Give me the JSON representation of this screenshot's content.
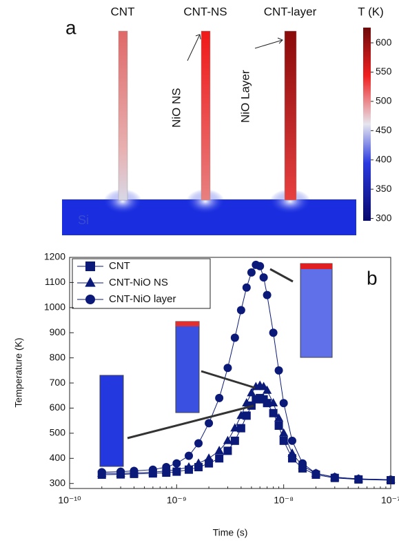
{
  "chart_data": [
    {
      "type": "colormap",
      "panel": "a",
      "labels": [
        "CNT",
        "CNT-NS",
        "CNT-layer"
      ],
      "annotations": [
        "NiO NS",
        "NiO Layer"
      ],
      "substrate": "Si",
      "colorbar_title": "T (K)",
      "colorbar_lim": [
        296,
        626
      ],
      "colorbar_ticks": [
        300,
        350,
        400,
        450,
        500,
        550,
        600
      ]
    },
    {
      "type": "line",
      "panel": "b",
      "xscale": "log",
      "xlabel": "Time (s)",
      "ylabel": "Temperature (K)",
      "xlim": [
        1e-10,
        1e-07
      ],
      "xticks": [
        {
          "value": 1e-10,
          "label": "10⁻¹⁰"
        },
        {
          "value": 1e-09,
          "label": "10⁻⁹"
        },
        {
          "value": 1e-08,
          "label": "10⁻⁸"
        },
        {
          "value": 1e-07,
          "label": "10⁻⁷"
        }
      ],
      "ylim": [
        280,
        1200
      ],
      "yticks": [
        300,
        400,
        500,
        600,
        700,
        800,
        900,
        1000,
        1100,
        1200
      ],
      "legend": "upper left",
      "x": [
        2e-10,
        3e-10,
        4e-10,
        6e-10,
        8e-10,
        1e-09,
        1.3e-09,
        1.6e-09,
        2e-09,
        2.5e-09,
        3e-09,
        3.5e-09,
        4e-09,
        4.5e-09,
        5e-09,
        5.5e-09,
        6e-09,
        6.5e-09,
        7e-09,
        8e-09,
        9e-09,
        1e-08,
        1.2e-08,
        1.5e-08,
        2e-08,
        3e-08,
        5e-08,
        1e-07
      ],
      "series": [
        {
          "name": "CNT",
          "marker": "square",
          "color": "#0b1a78",
          "values": [
            335,
            336,
            338,
            340,
            343,
            347,
            355,
            365,
            380,
            400,
            430,
            470,
            520,
            570,
            610,
            635,
            640,
            635,
            620,
            580,
            530,
            470,
            400,
            360,
            335,
            322,
            316,
            313
          ]
        },
        {
          "name": "CNT-NiO NS",
          "marker": "triangle",
          "color": "#0b1a78",
          "values": [
            340,
            340,
            342,
            345,
            350,
            355,
            365,
            380,
            400,
            430,
            470,
            520,
            570,
            620,
            660,
            685,
            690,
            685,
            670,
            620,
            560,
            500,
            420,
            370,
            340,
            325,
            318,
            315
          ]
        },
        {
          "name": "CNT-NiO layer",
          "marker": "circle",
          "color": "#0b1a78",
          "values": [
            345,
            347,
            350,
            355,
            365,
            380,
            410,
            460,
            540,
            640,
            760,
            880,
            990,
            1080,
            1140,
            1170,
            1165,
            1120,
            1050,
            900,
            750,
            620,
            470,
            380,
            340,
            325,
            318,
            315
          ]
        }
      ]
    }
  ]
}
